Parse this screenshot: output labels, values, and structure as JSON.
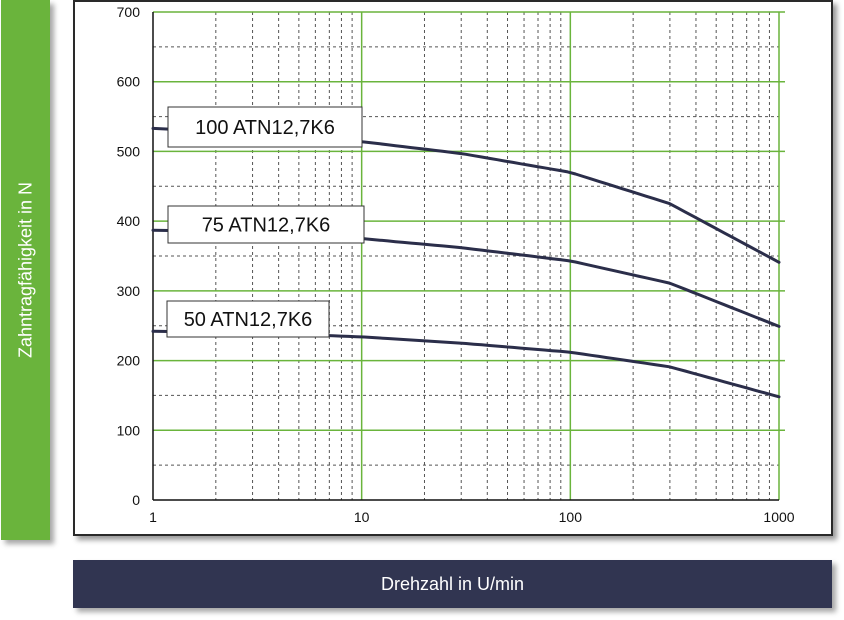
{
  "chart_data": {
    "type": "line",
    "xscale": "log",
    "xlim": [
      1,
      1000
    ],
    "ylim": [
      0,
      700
    ],
    "xlabel": "Drehzahl in U/min",
    "ylabel": "Zahntragfähigkeit in N",
    "xticks": [
      "1",
      "10",
      "100",
      "1000"
    ],
    "yticks": [
      "0",
      "100",
      "200",
      "300",
      "400",
      "500",
      "600",
      "700"
    ],
    "grid": true,
    "series": [
      {
        "name": "100 ATN12,7K6",
        "x": [
          1,
          3,
          10,
          30,
          100,
          300,
          1000
        ],
        "y": [
          533,
          527,
          514,
          497,
          470,
          425,
          341
        ]
      },
      {
        "name": "75 ATN12,7K6",
        "x": [
          1,
          3,
          10,
          30,
          100,
          300,
          1000
        ],
        "y": [
          387,
          384,
          375,
          362,
          343,
          311,
          249
        ]
      },
      {
        "name": "50 ATN12,7K6",
        "x": [
          1,
          3,
          10,
          30,
          100,
          300,
          1000
        ],
        "y": [
          242,
          240,
          234,
          225,
          212,
          191,
          148
        ]
      }
    ],
    "colors": {
      "curve": "#2b2e4a",
      "major_grid": "#6ab43c",
      "minor_grid": "#555555"
    }
  }
}
